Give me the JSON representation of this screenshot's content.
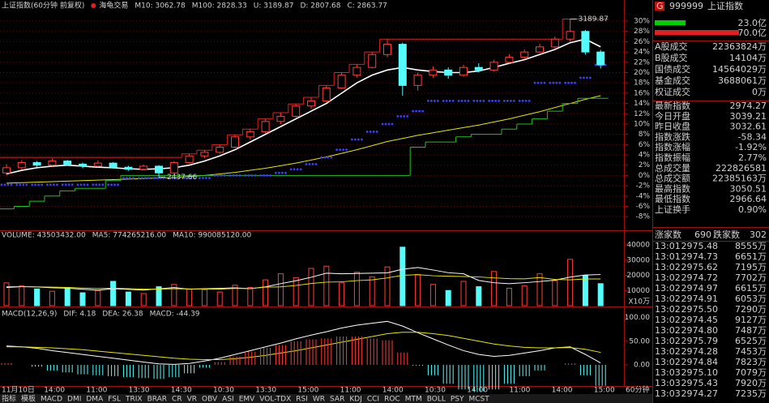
{
  "chart_data": [
    {
      "type": "candlestick",
      "title": "上证指数(60分钟 前复权)",
      "subtitle": "海龟交易",
      "ylim": [
        -10.5,
        31.9
      ],
      "yticks": [
        {
          "value": 30,
          "label": "30%"
        },
        {
          "value": 28,
          "label": "28%"
        },
        {
          "value": 26,
          "label": "26%"
        },
        {
          "value": 24,
          "label": "24%"
        },
        {
          "value": 22,
          "label": "22%"
        },
        {
          "value": 20,
          "label": "20%"
        },
        {
          "value": 18,
          "label": "18%"
        },
        {
          "value": 16,
          "label": "16%"
        },
        {
          "value": 14,
          "label": "14%"
        },
        {
          "value": 12,
          "label": "12%"
        },
        {
          "value": 10,
          "label": "10%"
        },
        {
          "value": 8,
          "label": "8%"
        },
        {
          "value": 6,
          "label": "6%"
        },
        {
          "value": 4,
          "label": "4%"
        },
        {
          "value": 2,
          "label": "2%"
        },
        {
          "value": 0,
          "label": "0%"
        },
        {
          "value": -2,
          "label": "-2%"
        },
        {
          "value": -4,
          "label": "-4%"
        },
        {
          "value": -6,
          "label": "-6%"
        },
        {
          "value": -8,
          "label": "-8%"
        }
      ],
      "grid": true,
      "candles": [
        [
          0.5,
          2.2,
          0.0,
          1.5
        ],
        [
          1.5,
          3.0,
          1.2,
          2.5
        ],
        [
          2.5,
          2.8,
          1.6,
          2.0
        ],
        [
          2.0,
          3.3,
          1.8,
          2.8
        ],
        [
          2.8,
          3.0,
          1.9,
          2.2
        ],
        [
          2.2,
          2.5,
          1.4,
          1.8
        ],
        [
          1.8,
          2.9,
          1.6,
          2.4
        ],
        [
          2.4,
          2.6,
          1.3,
          1.6
        ],
        [
          1.6,
          1.9,
          0.9,
          1.2
        ],
        [
          1.2,
          2.1,
          1.0,
          1.8
        ],
        [
          1.8,
          2.0,
          -0.3,
          0.5
        ],
        [
          0.5,
          2.8,
          0.3,
          2.5
        ],
        [
          2.5,
          4.2,
          2.3,
          3.8
        ],
        [
          3.8,
          4.9,
          3.4,
          4.5
        ],
        [
          4.5,
          6.0,
          4.2,
          5.5
        ],
        [
          5.5,
          7.9,
          5.3,
          7.5
        ],
        [
          7.5,
          9.0,
          7.0,
          8.5
        ],
        [
          8.5,
          11.0,
          8.2,
          10.5
        ],
        [
          10.5,
          12.2,
          10.0,
          11.5
        ],
        [
          11.5,
          13.9,
          11.2,
          13.5
        ],
        [
          13.5,
          15.2,
          13.0,
          14.5
        ],
        [
          14.5,
          17.5,
          14.2,
          17.0
        ],
        [
          17.0,
          20.0,
          16.8,
          19.5
        ],
        [
          19.5,
          21.6,
          19.0,
          21.0
        ],
        [
          21.0,
          24.0,
          20.8,
          23.5
        ],
        [
          23.5,
          26.5,
          23.0,
          25.5
        ],
        [
          25.5,
          25.8,
          15.5,
          17.5
        ],
        [
          17.5,
          20.0,
          16.5,
          19.5
        ],
        [
          19.5,
          21.2,
          19.0,
          20.5
        ],
        [
          20.5,
          21.0,
          18.8,
          19.5
        ],
        [
          19.5,
          21.5,
          19.2,
          21.0
        ],
        [
          21.0,
          21.8,
          20.0,
          20.5
        ],
        [
          20.5,
          22.5,
          20.2,
          22.0
        ],
        [
          22.0,
          23.6,
          21.8,
          23.0
        ],
        [
          23.0,
          24.5,
          22.6,
          24.0
        ],
        [
          24.0,
          25.6,
          23.8,
          25.0
        ],
        [
          25.0,
          27.0,
          24.6,
          26.5
        ],
        [
          26.5,
          30.4,
          26.0,
          28.0
        ],
        [
          28.0,
          28.3,
          23.5,
          24.0
        ],
        [
          24.0,
          24.4,
          20.8,
          21.5
        ]
      ],
      "series": [
        {
          "name": "M10: 3062.78",
          "color": "#ffffff",
          "style": "line",
          "values": [
            0.3,
            1.0,
            1.5,
            1.8,
            2.0,
            1.8,
            1.6,
            1.5,
            1.3,
            1.2,
            1.3,
            1.5,
            2.0,
            2.8,
            3.8,
            5.0,
            6.5,
            8.0,
            9.5,
            11.0,
            12.5,
            14.0,
            16.0,
            18.0,
            19.5,
            20.5,
            21.0,
            20.5,
            20.2,
            20.0,
            20.0,
            20.3,
            21.0,
            21.8,
            22.5,
            23.5,
            24.5,
            25.8,
            26.5,
            25.0
          ]
        },
        {
          "name": "M100: 2828.33",
          "color": "#e6e600",
          "style": "line",
          "values": [
            -1.5,
            -1.4,
            -1.3,
            -1.2,
            -1.1,
            -1.0,
            -0.9,
            -0.8,
            -0.7,
            -0.6,
            -0.5,
            -0.4,
            -0.2,
            0.0,
            0.3,
            0.6,
            1.0,
            1.4,
            1.9,
            2.4,
            3.0,
            3.6,
            4.3,
            5.0,
            5.8,
            6.6,
            7.2,
            7.8,
            8.3,
            8.8,
            9.3,
            9.8,
            10.4,
            11.0,
            11.7,
            12.4,
            13.2,
            14.0,
            14.8,
            15.5
          ]
        },
        {
          "name": "U: 3189.87",
          "color": "#e02020",
          "style": "step",
          "values": [
            3.5,
            3.5,
            3.5,
            3.5,
            3.5,
            3.5,
            3.5,
            3.5,
            3.5,
            3.5,
            3.5,
            3.5,
            4.2,
            4.9,
            6.0,
            7.9,
            9.0,
            11.0,
            12.2,
            13.9,
            15.2,
            17.5,
            20.0,
            21.6,
            24.0,
            26.5,
            26.5,
            26.5,
            26.5,
            26.5,
            26.5,
            26.5,
            26.5,
            26.5,
            26.5,
            26.5,
            26.5,
            30.4,
            30.4,
            30.4
          ]
        },
        {
          "name": "D: 2807.68",
          "color": "#20c020",
          "style": "step",
          "values": [
            -6.5,
            -6.0,
            -5.0,
            -4.0,
            -3.0,
            -2.5,
            -2.5,
            -1.0,
            0.0,
            0.0,
            0.0,
            0.0,
            0.0,
            0.0,
            0.0,
            0.0,
            0.0,
            0.0,
            0.0,
            0.0,
            0.0,
            0.0,
            0.0,
            0.0,
            0.0,
            0.0,
            0.0,
            5.5,
            6.5,
            6.5,
            7.5,
            8.0,
            8.0,
            9.0,
            10.0,
            11.0,
            12.5,
            14.0,
            15.0,
            15.0
          ]
        },
        {
          "name": "C: 2863.77",
          "color": "#3c3cff",
          "style": "dots",
          "values": [
            -1.8,
            -1.8,
            -1.8,
            -1.8,
            -1.8,
            -1.8,
            -1.8,
            -1.8,
            -0.5,
            -0.5,
            -0.5,
            -0.5,
            -0.5,
            -0.5,
            0.0,
            0.0,
            0.0,
            0.0,
            0.5,
            1.2,
            2.2,
            3.5,
            5.0,
            7.0,
            8.5,
            10.0,
            11.5,
            12.5,
            14.5,
            14.5,
            14.5,
            14.5,
            14.5,
            14.5,
            14.5,
            18.0,
            18.0,
            18.0,
            19.0,
            21.5
          ]
        }
      ],
      "annotations": [
        "3189.87",
        "2437.66"
      ]
    },
    {
      "type": "bar",
      "title": "VOLUME: 43503432.00",
      "unit_label": "X10万",
      "ylim": [
        0,
        43200
      ],
      "yticks": [
        10000,
        20000,
        30000,
        40000
      ],
      "values": [
        15000,
        13000,
        11000,
        9500,
        12000,
        8500,
        10000,
        16000,
        9000,
        8000,
        12500,
        14000,
        11000,
        10500,
        9000,
        13500,
        12000,
        17000,
        21000,
        18500,
        24500,
        26000,
        15000,
        22000,
        19000,
        25500,
        38500,
        20500,
        14000,
        10000,
        16000,
        12500,
        22500,
        11500,
        13000,
        21000,
        16500,
        30500,
        20000,
        14500
      ],
      "series": [
        {
          "name": "MA5: 774265216.00",
          "color": "#ffffff",
          "values": [
            12000,
            12500,
            12300,
            11800,
            11500,
            10800,
            10200,
            11200,
            10700,
            10300,
            11100,
            11900,
            10900,
            11200,
            11400,
            11700,
            11200,
            12400,
            14500,
            16400,
            18700,
            21400,
            21000,
            21200,
            21400,
            21600,
            24000,
            25100,
            23500,
            21700,
            21000,
            16600,
            15100,
            14500,
            15100,
            15900,
            16800,
            18800,
            20200,
            20500
          ]
        },
        {
          "name": "MA10: 990085120.00",
          "color": "#e6e600",
          "values": [
            12500,
            12600,
            12400,
            12200,
            12000,
            11600,
            11300,
            11500,
            11200,
            10900,
            10900,
            11200,
            11000,
            11000,
            10900,
            11400,
            11300,
            12200,
            12400,
            13300,
            14600,
            15500,
            15700,
            16500,
            17000,
            18300,
            20000,
            20400,
            19700,
            19400,
            19200,
            18900,
            18300,
            17800,
            17700,
            18500,
            17300,
            17000,
            17600,
            17600
          ]
        }
      ]
    },
    {
      "type": "macd",
      "title": "MACD(12,26,9)",
      "ylim": [
        -43,
        120
      ],
      "yticks": [
        {
          "value": 0,
          "label": "0.00"
        },
        {
          "value": 50,
          "label": "50.00"
        },
        {
          "value": 100,
          "label": "100.00"
        }
      ],
      "series": [
        {
          "name": "DIF: 4.18",
          "color": "#ffffff",
          "style": "line",
          "values": [
            40,
            38,
            35,
            30,
            26,
            22,
            18,
            14,
            10,
            6,
            2,
            1,
            3,
            8,
            14,
            22,
            30,
            38,
            46,
            55,
            63,
            70,
            78,
            84,
            88,
            92,
            82,
            68,
            55,
            42,
            30,
            22,
            18,
            20,
            25,
            30,
            36,
            38,
            22,
            4.18
          ]
        },
        {
          "name": "DEA: 26.38",
          "color": "#e6e600",
          "style": "line",
          "values": [
            38,
            38,
            37,
            36,
            34,
            32,
            29,
            26,
            23,
            20,
            17,
            14,
            12,
            11,
            11,
            13,
            16,
            20,
            25,
            30,
            36,
            42,
            48,
            54,
            60,
            66,
            69,
            69,
            66,
            62,
            56,
            50,
            44,
            40,
            37,
            36,
            36,
            36.5,
            33,
            26.38
          ]
        },
        {
          "name": "MACD: -44.39",
          "color": "#ff40ff",
          "style": "bar",
          "values": [
            4,
            0,
            -4,
            -12,
            -16,
            -20,
            -22,
            -24,
            -26,
            -28,
            -30,
            -26,
            -18,
            -6,
            6,
            18,
            28,
            36,
            42,
            50,
            54,
            56,
            60,
            60,
            56,
            52,
            26,
            -2,
            -22,
            -40,
            -52,
            -56,
            -52,
            -40,
            -24,
            -12,
            0,
            3,
            -22,
            -44.39
          ]
        }
      ]
    }
  ],
  "time_axis": [
    "11月10日",
    "14:00",
    "11:00",
    "13:30",
    "14:30",
    "10:30",
    "13:30",
    "15:00",
    "11:00",
    "14:00",
    "10:30",
    "14:00",
    "11:00",
    "14:00",
    "15:00"
  ],
  "tabs": [
    "指标",
    "模板",
    "MACD",
    "DMI",
    "DMA",
    "FSL",
    "TRIX",
    "BRAR",
    "CR",
    "VR",
    "OBV",
    "ASI",
    "EMV",
    "VOL-TDX",
    "RSI",
    "WR",
    "SAR",
    "KDJ",
    "CCI",
    "ROC",
    "MTM",
    "BOLL",
    "PSY",
    "MCST"
  ],
  "period": "60分钟",
  "quote": {
    "badge": "G",
    "code": "999999",
    "name": "上证指数",
    "bar1": "23.0亿",
    "bar2": "70.0亿",
    "volumes": [
      [
        "A股成交",
        "22363824万"
      ],
      [
        "B股成交",
        "14104万"
      ],
      [
        "国债成交",
        "14564029万"
      ],
      [
        "基金成交",
        "3688061万"
      ],
      [
        "权证成交",
        "0万"
      ]
    ],
    "stats": [
      [
        "最新指数",
        "2974.27"
      ],
      [
        "今日开盘",
        "3039.21"
      ],
      [
        "昨日收盘",
        "3032.61"
      ],
      [
        "指数涨跌",
        "-58.34"
      ],
      [
        "指数涨幅",
        "-1.92%"
      ],
      [
        "指数振幅",
        "2.77%"
      ],
      [
        "总成交量",
        "222826581"
      ],
      [
        "总成交额",
        "22385163万"
      ],
      [
        "最高指数",
        "3050.51"
      ],
      [
        "最低指数",
        "2966.64"
      ],
      [
        "上证换手",
        "0.90%"
      ]
    ],
    "breadth": [
      "涨家数",
      "690",
      "跌家数",
      "302"
    ],
    "ticks": [
      [
        "13:01",
        "2975.48",
        "8555万"
      ],
      [
        "13:01",
        "2974.73",
        "6651万"
      ],
      [
        "13:02",
        "2975.62",
        "7195万"
      ],
      [
        "13:02",
        "2974.72",
        "7702万"
      ],
      [
        "13:02",
        "2974.97",
        "6615万"
      ],
      [
        "13:02",
        "2974.91",
        "6053万"
      ],
      [
        "13:02",
        "2975.50",
        "7290万"
      ],
      [
        "13:02",
        "2974.45",
        "9127万"
      ],
      [
        "13:02",
        "2974.80",
        "7487万"
      ],
      [
        "13:02",
        "2975.79",
        "6525万"
      ],
      [
        "13:02",
        "2974.28",
        "7453万"
      ],
      [
        "13:02",
        "2974.84",
        "7823万"
      ],
      [
        "13:03",
        "2975.10",
        "7079万"
      ],
      [
        "13:03",
        "2975.43",
        "7920万"
      ],
      [
        "13:03",
        "2974.27",
        "7235万"
      ]
    ]
  }
}
